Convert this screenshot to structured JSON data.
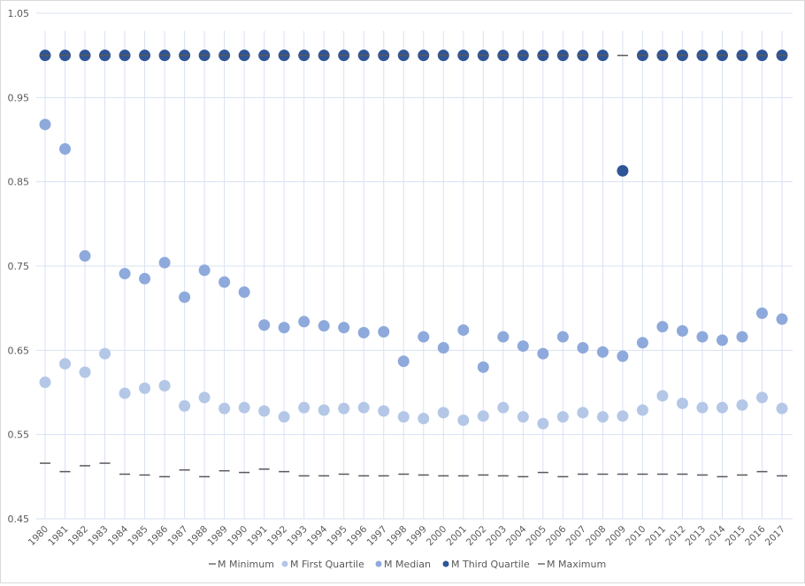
{
  "chart_data": {
    "type": "scatter",
    "title": "",
    "xlabel": "",
    "ylabel": "",
    "ylim": [
      0.45,
      1.05
    ],
    "yticks": [
      "0.45",
      "0.55",
      "0.65",
      "0.75",
      "0.85",
      "0.95",
      "1.05"
    ],
    "grid": true,
    "legend_position": "bottom",
    "categories": [
      "1980",
      "1981",
      "1982",
      "1983",
      "1984",
      "1985",
      "1986",
      "1987",
      "1988",
      "1989",
      "1990",
      "1991",
      "1992",
      "1993",
      "1994",
      "1995",
      "1996",
      "1997",
      "1998",
      "1999",
      "2000",
      "2001",
      "2002",
      "2003",
      "2004",
      "2005",
      "2006",
      "2007",
      "2008",
      "2009",
      "2010",
      "2011",
      "2012",
      "2013",
      "2014",
      "2015",
      "2016",
      "2017"
    ],
    "series": [
      {
        "name": "M Minimum",
        "marker": "dash",
        "color": "#595959",
        "values": [
          0.516,
          0.506,
          0.513,
          0.516,
          0.503,
          0.502,
          0.5,
          0.508,
          0.5,
          0.507,
          0.505,
          0.509,
          0.506,
          0.501,
          0.501,
          0.503,
          0.501,
          0.501,
          0.503,
          0.502,
          0.501,
          0.501,
          0.502,
          0.501,
          0.5,
          0.505,
          0.5,
          0.503,
          0.503,
          0.503,
          0.503,
          0.503,
          0.503,
          0.502,
          0.5,
          0.502,
          0.506,
          0.501
        ]
      },
      {
        "name": "M First Quartile",
        "marker": "circle",
        "color": "#b4c7e7",
        "values": [
          0.612,
          0.634,
          0.624,
          0.646,
          0.599,
          0.605,
          0.608,
          0.584,
          0.594,
          0.581,
          0.582,
          0.578,
          0.571,
          0.582,
          0.579,
          0.581,
          0.582,
          0.578,
          0.571,
          0.569,
          0.576,
          0.567,
          0.572,
          0.582,
          0.571,
          0.563,
          0.571,
          0.576,
          0.571,
          0.572,
          0.579,
          0.596,
          0.587,
          0.582,
          0.582,
          0.585,
          0.594,
          0.581
        ]
      },
      {
        "name": "M Median",
        "marker": "circle",
        "color": "#8ea9db",
        "values": [
          0.918,
          0.889,
          0.762,
          1.0,
          0.741,
          0.735,
          0.754,
          0.713,
          0.745,
          0.731,
          0.719,
          0.68,
          0.677,
          0.684,
          0.679,
          0.677,
          0.671,
          0.672,
          0.637,
          0.666,
          0.653,
          0.674,
          0.63,
          0.666,
          0.655,
          0.646,
          0.666,
          0.653,
          0.648,
          0.643,
          0.659,
          0.678,
          0.673,
          0.666,
          0.662,
          0.666,
          0.694,
          0.687
        ]
      },
      {
        "name": "M Third Quartile",
        "marker": "circle",
        "color": "#2f5597",
        "values": [
          1.0,
          1.0,
          1.0,
          1.0,
          1.0,
          1.0,
          1.0,
          1.0,
          1.0,
          1.0,
          1.0,
          1.0,
          1.0,
          1.0,
          1.0,
          1.0,
          1.0,
          1.0,
          1.0,
          1.0,
          1.0,
          1.0,
          1.0,
          1.0,
          1.0,
          1.0,
          1.0,
          1.0,
          1.0,
          0.863,
          1.0,
          1.0,
          1.0,
          1.0,
          1.0,
          1.0,
          1.0,
          1.0
        ]
      },
      {
        "name": "M Maximum",
        "marker": "dash",
        "color": "#595959",
        "values": [
          1.0,
          1.0,
          1.0,
          1.0,
          1.0,
          1.0,
          1.0,
          1.0,
          1.0,
          1.0,
          1.0,
          1.0,
          1.0,
          1.0,
          1.0,
          1.0,
          1.0,
          1.0,
          1.0,
          1.0,
          1.0,
          1.0,
          1.0,
          1.0,
          1.0,
          1.0,
          1.0,
          1.0,
          1.0,
          1.0,
          1.0,
          1.0,
          1.0,
          1.0,
          1.0,
          1.0,
          1.0,
          1.0
        ]
      }
    ]
  }
}
